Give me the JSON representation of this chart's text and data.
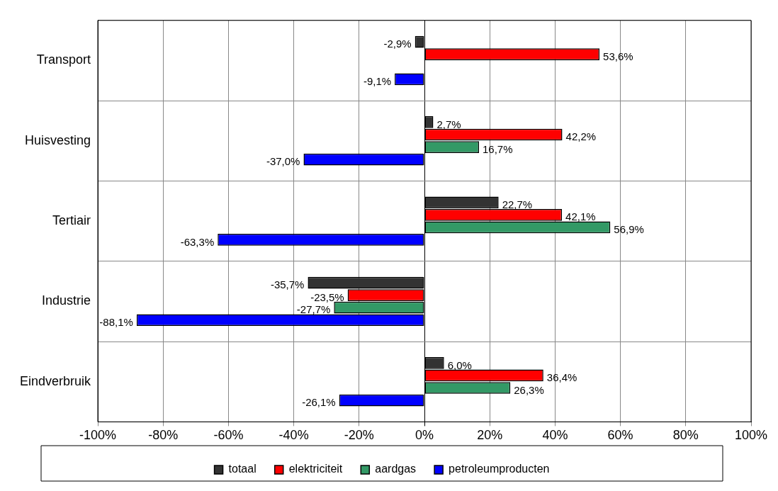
{
  "chart_data": {
    "type": "bar",
    "orientation": "horizontal",
    "categories": [
      "Transport",
      "Huisvesting",
      "Tertiair",
      "Industrie",
      "Eindverbruik"
    ],
    "series": [
      {
        "name": "totaal",
        "color": "#333333",
        "values": [
          -2.9,
          2.7,
          22.7,
          -35.7,
          6.0
        ],
        "value_labels": [
          "-2,9%",
          "2,7%",
          "22,7%",
          "-35,7%",
          "6,0%"
        ]
      },
      {
        "name": "elektriciteit",
        "color": "#ff0000",
        "values": [
          53.6,
          42.2,
          42.1,
          -23.5,
          36.4
        ],
        "value_labels": [
          "53,6%",
          "42,2%",
          "42,1%",
          "-23,5%",
          "36,4%"
        ]
      },
      {
        "name": "aardgas",
        "color": "#339966",
        "values": [
          null,
          16.7,
          56.9,
          -27.7,
          26.3
        ],
        "value_labels": [
          null,
          "16,7%",
          "56,9%",
          "-27,7%",
          "26,3%"
        ]
      },
      {
        "name": "petroleumproducten",
        "color": "#0000ff",
        "values": [
          -9.1,
          -37.0,
          -63.3,
          -88.1,
          -26.1
        ],
        "value_labels": [
          "-9,1%",
          "-37,0%",
          "-63,3%",
          "-88,1%",
          "-26,1%"
        ]
      }
    ],
    "xlim": [
      -100,
      100
    ],
    "xticks": [
      {
        "value": -100,
        "label": "-100%"
      },
      {
        "value": -80,
        "label": "-80%"
      },
      {
        "value": -60,
        "label": "-60%"
      },
      {
        "value": -40,
        "label": "-40%"
      },
      {
        "value": -20,
        "label": "-20%"
      },
      {
        "value": 0,
        "label": "0%"
      },
      {
        "value": 20,
        "label": "20%"
      },
      {
        "value": 40,
        "label": "40%"
      },
      {
        "value": 60,
        "label": "60%"
      },
      {
        "value": 80,
        "label": "80%"
      },
      {
        "value": 100,
        "label": "100%"
      }
    ],
    "grid": true,
    "legend": "bottom"
  }
}
